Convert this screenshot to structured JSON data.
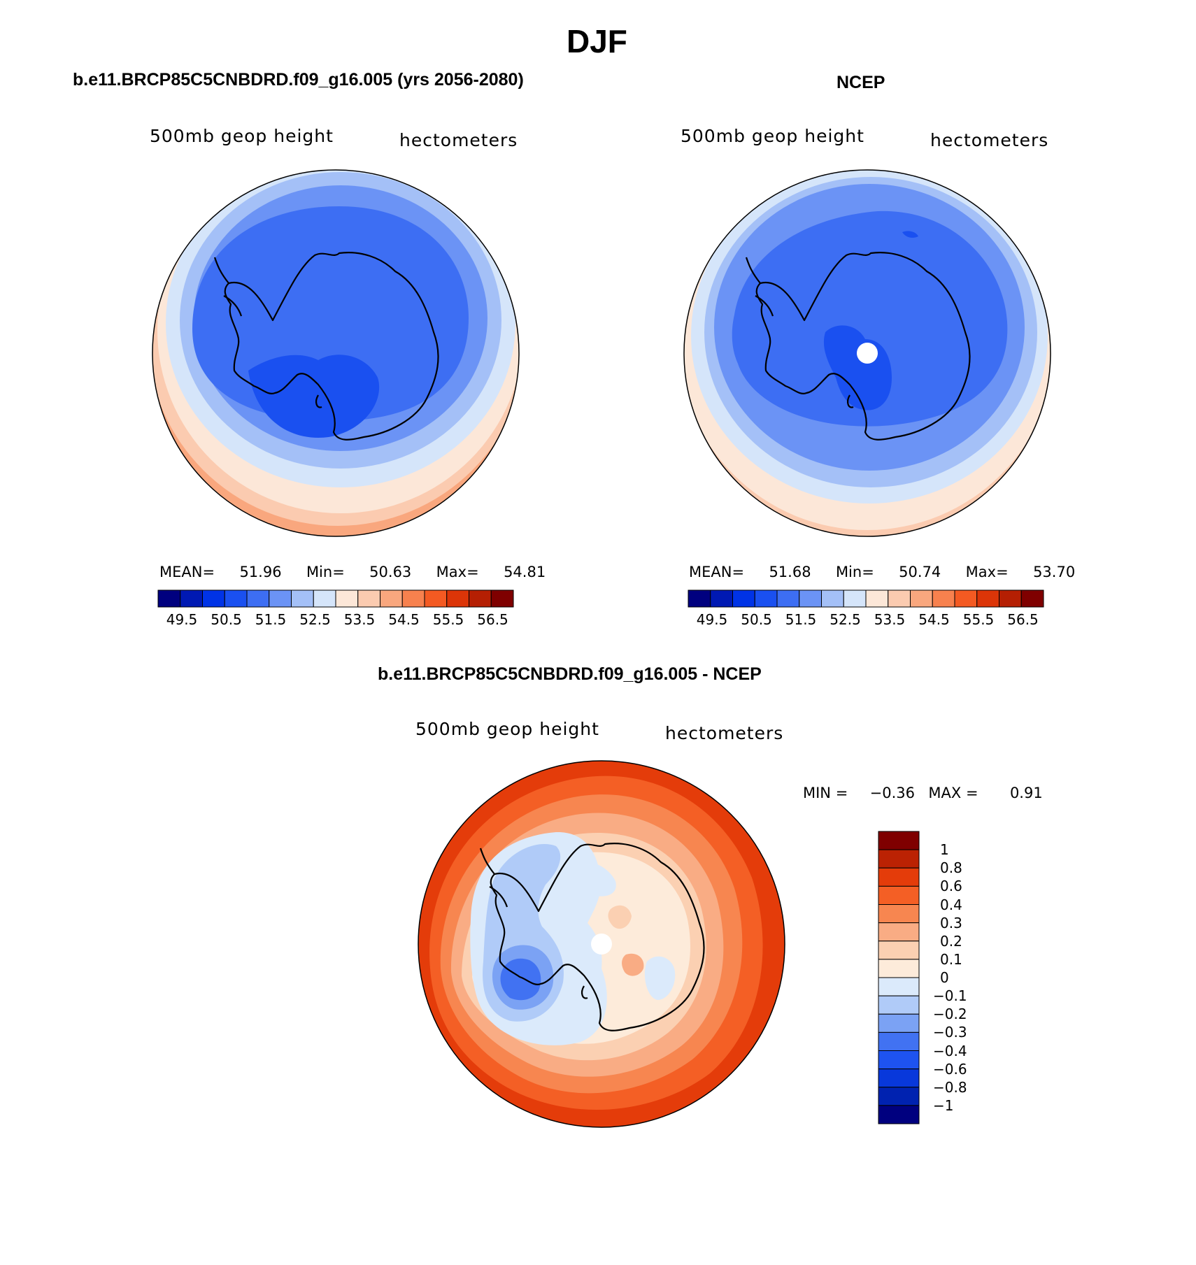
{
  "figure": {
    "title": "DJF"
  },
  "panels": [
    {
      "name": "model",
      "title": "b.e11.BRCP85C5CNBDRD.f09_g16.005 (yrs 2056-2080)",
      "variable_label": "500mb geop height",
      "units_label": "hectometers",
      "stats": {
        "mean_label": "MEAN=",
        "mean": "51.96",
        "min_label": "Min=",
        "min": "50.63",
        "max_label": "Max=",
        "max": "54.81"
      }
    },
    {
      "name": "obs",
      "title": "NCEP",
      "variable_label": "500mb geop height",
      "units_label": "hectometers",
      "stats": {
        "mean_label": "MEAN=",
        "mean": "51.68",
        "min_label": "Min=",
        "min": "50.74",
        "max_label": "Max=",
        "max": "53.70"
      }
    },
    {
      "name": "diff",
      "title": "b.e11.BRCP85C5CNBDRD.f09_g16.005 - NCEP",
      "variable_label": "500mb geop height",
      "units_label": "hectometers",
      "stats": {
        "min_label": "MIN =",
        "min": "−0.36",
        "max_label": "MAX =",
        "max": "0.91"
      }
    }
  ],
  "colorbars": {
    "abs": {
      "colors": [
        "#00007f",
        "#0019b3",
        "#0033e6",
        "#1a50f0",
        "#3d6ef3",
        "#6b93f5",
        "#a4c0f7",
        "#d5e5fa",
        "#fce7d8",
        "#fbcbb0",
        "#f9a77e",
        "#f7814e",
        "#f45a22",
        "#dc3508",
        "#b51f03",
        "#7f0000"
      ],
      "tick_labels": [
        "49.5",
        "50.5",
        "51.5",
        "52.5",
        "53.5",
        "54.5",
        "55.5",
        "56.5"
      ]
    },
    "diff": {
      "colors": [
        "#00007f",
        "#0022b0",
        "#0838db",
        "#1e53f0",
        "#4172f2",
        "#7ba2f4",
        "#b0cbf8",
        "#dbeafb",
        "#fdebda",
        "#fbd0b2",
        "#f9ac84",
        "#f78650",
        "#f45f25",
        "#e43c0a",
        "#bb2203",
        "#7f0000"
      ],
      "tick_labels": [
        "1",
        "0.8",
        "0.6",
        "0.4",
        "0.3",
        "0.2",
        "0.1",
        "0",
        "−0.1",
        "−0.2",
        "−0.3",
        "−0.4",
        "−0.6",
        "−0.8",
        "−1"
      ]
    }
  }
}
